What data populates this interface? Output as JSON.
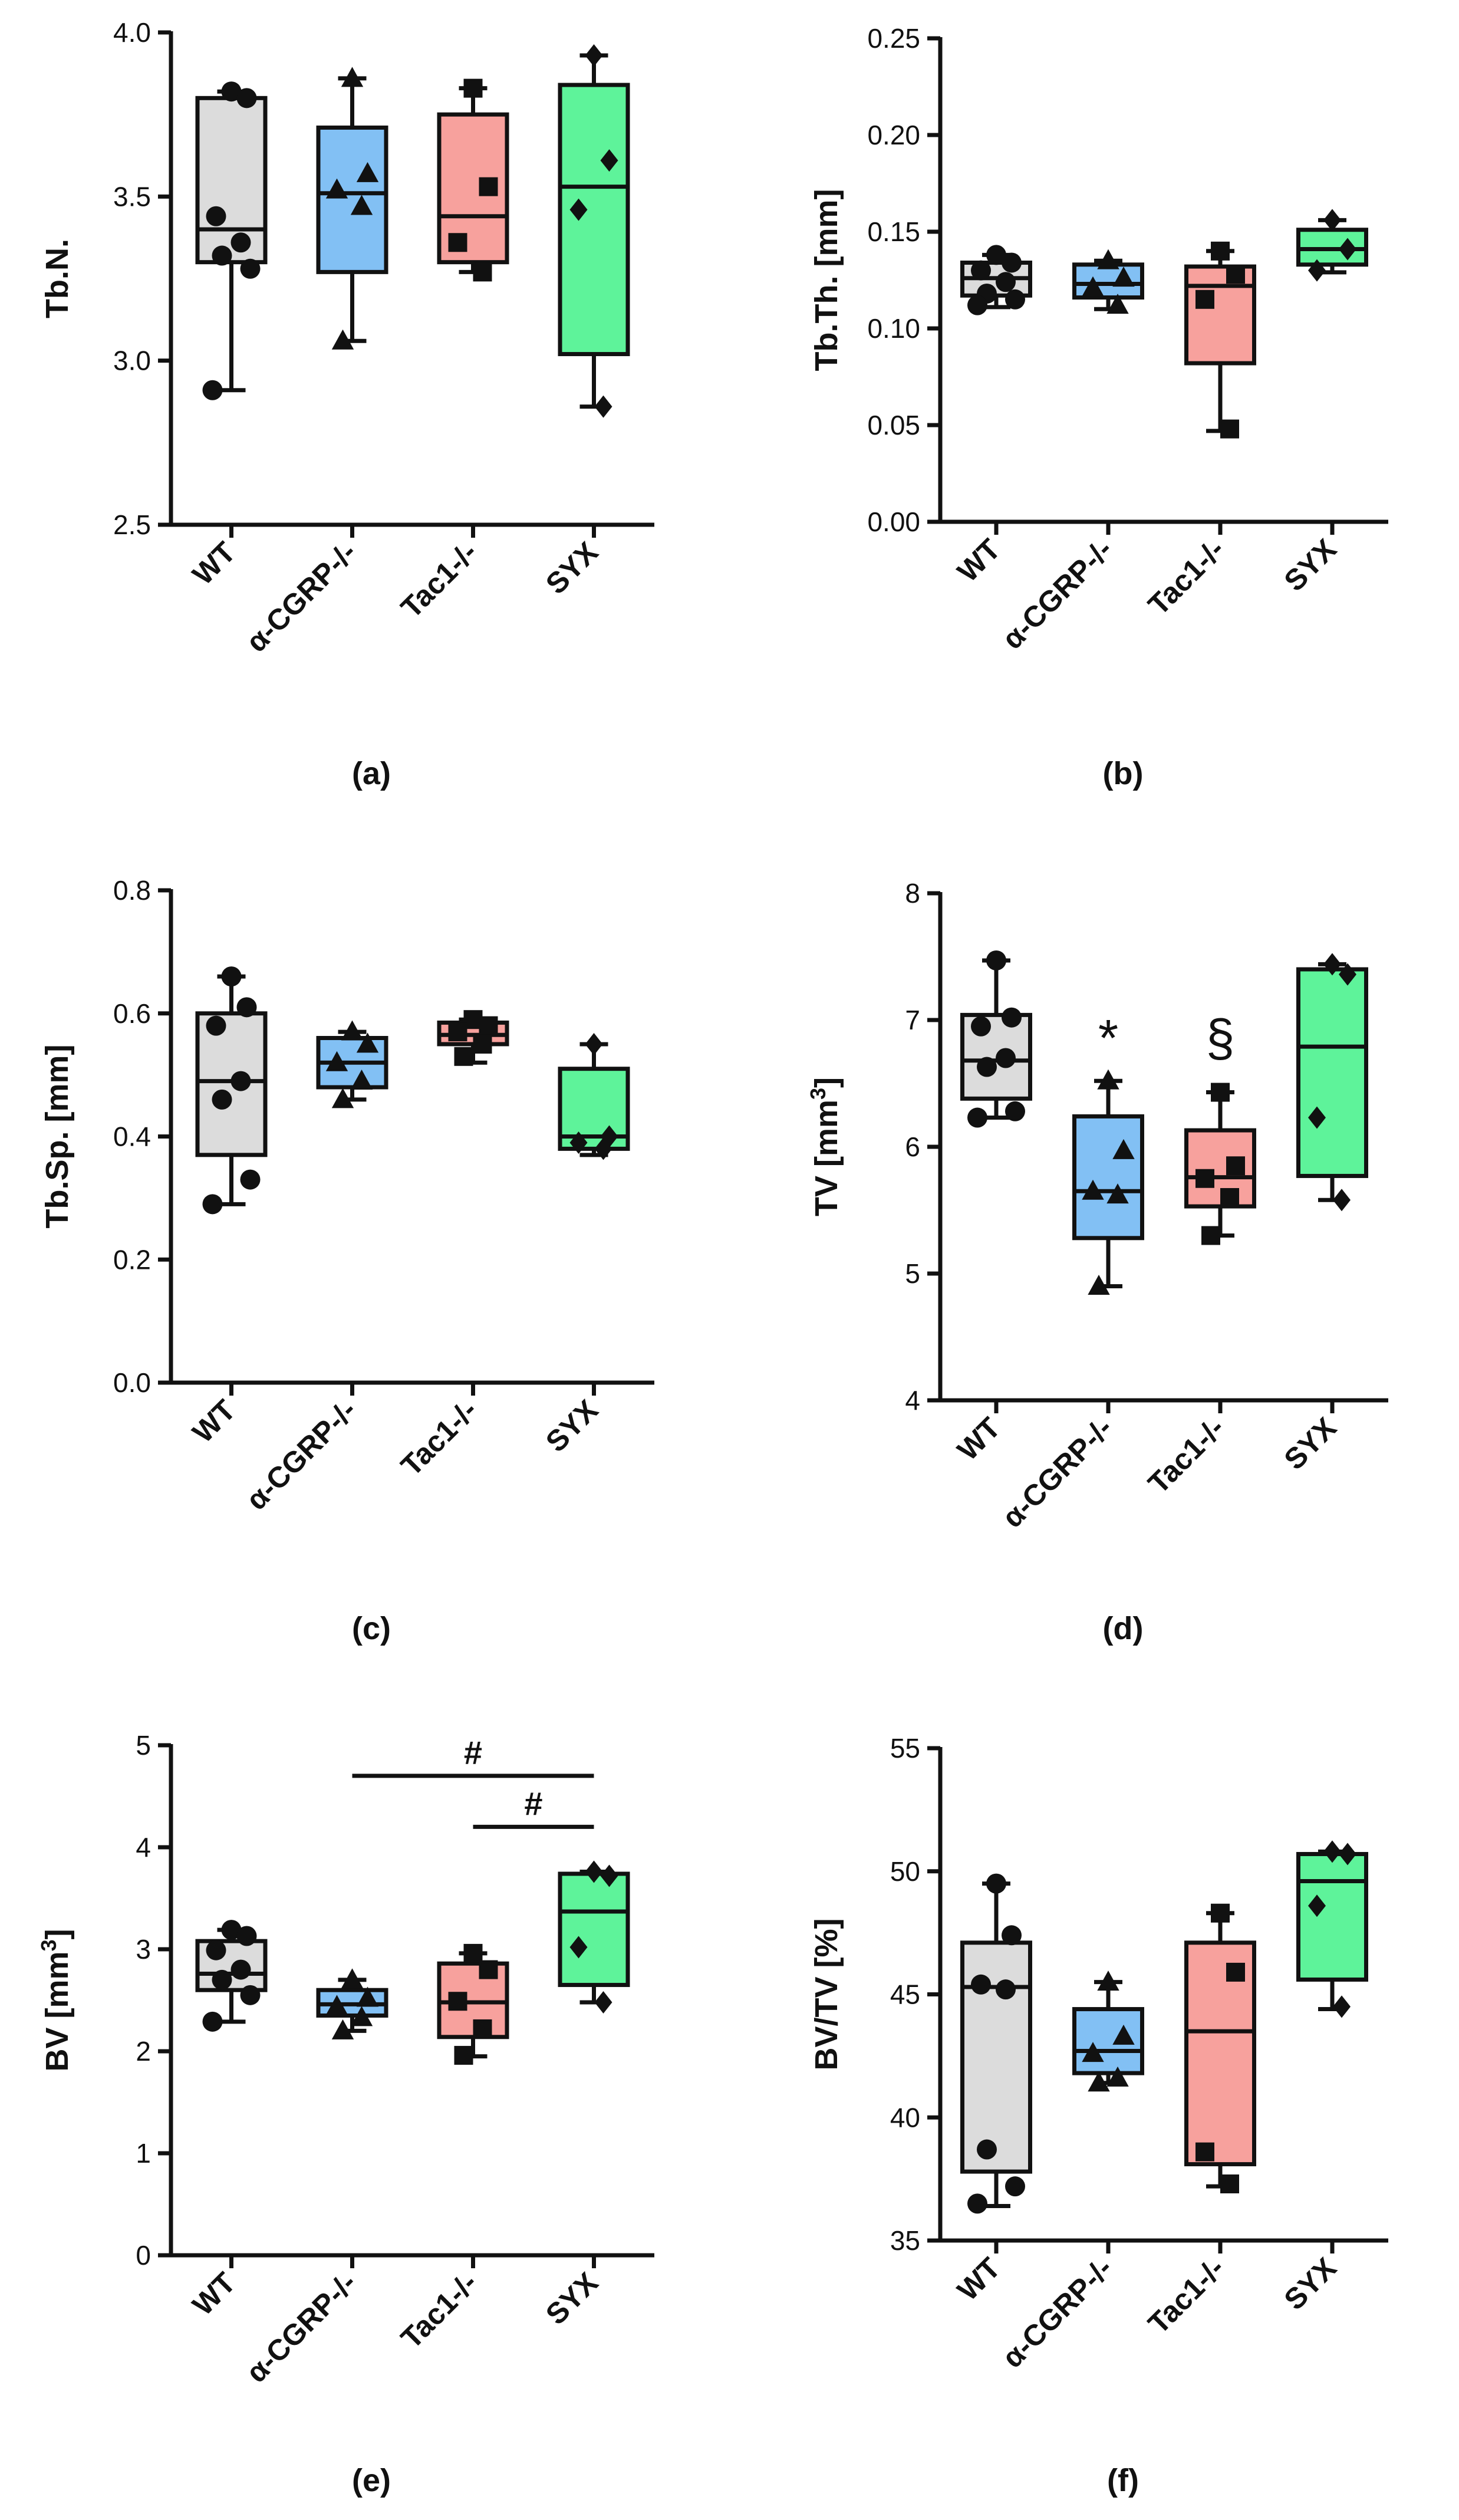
{
  "colors": {
    "WT": "#dcdcdc",
    "a-CGRP": "#82c0f4",
    "Tac1": "#f7a19d",
    "SYX": "#5ef39a",
    "ink": "#111111"
  },
  "chart_data": [
    {
      "type": "box",
      "panel_label": "(a)",
      "ylabel": "Tb.N.",
      "ylabel_sup": "",
      "ylabel_tail": "",
      "ylim": [
        2.5,
        4.0
      ],
      "yticks": [
        "2.5",
        "3.0",
        "3.5",
        "4.0"
      ],
      "ytick_values": [
        2.5,
        3.0,
        3.5,
        4.0
      ],
      "categories": [
        "WT",
        "α-CGRP-/-",
        "Tac1-/-",
        "SYX"
      ],
      "series": [
        {
          "name": "WT",
          "marker": "circle",
          "min": 2.91,
          "q1": 3.3,
          "median": 3.4,
          "q3": 3.8,
          "max": 3.82,
          "points": [
            3.82,
            3.8,
            3.44,
            3.36,
            3.32,
            3.28,
            2.91
          ]
        },
        {
          "name": "α-CGRP-/-",
          "marker": "triangle",
          "min": 3.06,
          "q1": 3.27,
          "median": 3.51,
          "q3": 3.71,
          "max": 3.86,
          "points": [
            3.86,
            3.57,
            3.52,
            3.47,
            3.06
          ]
        },
        {
          "name": "Tac1-/-",
          "marker": "square",
          "min": 3.27,
          "q1": 3.3,
          "median": 3.44,
          "q3": 3.75,
          "max": 3.83,
          "points": [
            3.83,
            3.53,
            3.36,
            3.27
          ]
        },
        {
          "name": "SYX",
          "marker": "diamond",
          "min": 2.86,
          "q1": 3.02,
          "median": 3.53,
          "q3": 3.84,
          "max": 3.93,
          "points": [
            3.93,
            3.61,
            3.46,
            2.86
          ]
        }
      ],
      "annotations": [],
      "brackets": []
    },
    {
      "type": "box",
      "panel_label": "(b)",
      "ylabel": "Tb.Th. [mm]",
      "ylabel_sup": "",
      "ylabel_tail": "",
      "ylim": [
        0.0,
        0.25
      ],
      "yticks": [
        "0.00",
        "0.05",
        "0.10",
        "0.15",
        "0.20",
        "0.25"
      ],
      "ytick_values": [
        0.0,
        0.05,
        0.1,
        0.15,
        0.2,
        0.25
      ],
      "categories": [
        "WT",
        "α-CGRP-/-",
        "Tac1-/-",
        "SYX"
      ],
      "series": [
        {
          "name": "WT",
          "marker": "circle",
          "min": 0.111,
          "q1": 0.117,
          "median": 0.126,
          "q3": 0.134,
          "max": 0.138,
          "points": [
            0.138,
            0.134,
            0.13,
            0.124,
            0.118,
            0.115,
            0.112
          ]
        },
        {
          "name": "α-CGRP-/-",
          "marker": "triangle",
          "min": 0.11,
          "q1": 0.116,
          "median": 0.123,
          "q3": 0.133,
          "max": 0.135,
          "points": [
            0.135,
            0.126,
            0.121,
            0.112
          ]
        },
        {
          "name": "Tac1-/-",
          "marker": "square",
          "min": 0.047,
          "q1": 0.082,
          "median": 0.122,
          "q3": 0.132,
          "max": 0.14,
          "points": [
            0.14,
            0.128,
            0.115,
            0.048
          ]
        },
        {
          "name": "SYX",
          "marker": "diamond",
          "min": 0.129,
          "q1": 0.133,
          "median": 0.141,
          "q3": 0.151,
          "max": 0.156,
          "points": [
            0.156,
            0.141,
            0.13
          ]
        }
      ],
      "annotations": [],
      "brackets": []
    },
    {
      "type": "box",
      "panel_label": "(c)",
      "ylabel": "Tb.Sp. [mm]",
      "ylabel_sup": "",
      "ylabel_tail": "",
      "ylim": [
        0.0,
        0.8
      ],
      "yticks": [
        "0.0",
        "0.2",
        "0.4",
        "0.6",
        "0.8"
      ],
      "ytick_values": [
        0.0,
        0.2,
        0.4,
        0.6,
        0.8
      ],
      "categories": [
        "WT",
        "α-CGRP-/-",
        "Tac1-/-",
        "SYX"
      ],
      "series": [
        {
          "name": "WT",
          "marker": "circle",
          "min": 0.29,
          "q1": 0.37,
          "median": 0.49,
          "q3": 0.6,
          "max": 0.66,
          "points": [
            0.66,
            0.61,
            0.58,
            0.49,
            0.46,
            0.33,
            0.29
          ]
        },
        {
          "name": "α-CGRP-/-",
          "marker": "triangle",
          "min": 0.46,
          "q1": 0.48,
          "median": 0.52,
          "q3": 0.56,
          "max": 0.57,
          "points": [
            0.57,
            0.55,
            0.52,
            0.49,
            0.46
          ]
        },
        {
          "name": "Tac1-/-",
          "marker": "square",
          "min": 0.52,
          "q1": 0.55,
          "median": 0.565,
          "q3": 0.585,
          "max": 0.59,
          "points": [
            0.59,
            0.58,
            0.57,
            0.55,
            0.53
          ]
        },
        {
          "name": "SYX",
          "marker": "diamond",
          "min": 0.37,
          "q1": 0.38,
          "median": 0.4,
          "q3": 0.51,
          "max": 0.55,
          "points": [
            0.55,
            0.4,
            0.39,
            0.38
          ]
        }
      ],
      "annotations": [],
      "brackets": []
    },
    {
      "type": "box",
      "panel_label": "(d)",
      "ylabel": "TV [mm",
      "ylabel_sup": "3",
      "ylabel_tail": "]",
      "ylim": [
        4,
        8
      ],
      "yticks": [
        "4",
        "5",
        "6",
        "7",
        "8"
      ],
      "ytick_values": [
        4,
        5,
        6,
        7,
        8
      ],
      "categories": [
        "WT",
        "α-CGRP-/-",
        "Tac1-/-",
        "SYX"
      ],
      "series": [
        {
          "name": "WT",
          "marker": "circle",
          "min": 6.23,
          "q1": 6.38,
          "median": 6.68,
          "q3": 7.04,
          "max": 7.47,
          "points": [
            7.47,
            7.02,
            6.95,
            6.7,
            6.63,
            6.28,
            6.23
          ]
        },
        {
          "name": "α-CGRP-/-",
          "marker": "triangle",
          "min": 4.9,
          "q1": 5.28,
          "median": 5.65,
          "q3": 6.24,
          "max": 6.52,
          "points": [
            6.52,
            5.97,
            5.65,
            5.62,
            4.9
          ]
        },
        {
          "name": "Tac1-/-",
          "marker": "square",
          "min": 5.3,
          "q1": 5.53,
          "median": 5.76,
          "q3": 6.13,
          "max": 6.43,
          "points": [
            6.43,
            5.85,
            5.75,
            5.6,
            5.3
          ]
        },
        {
          "name": "SYX",
          "marker": "diamond",
          "min": 5.58,
          "q1": 5.77,
          "median": 6.79,
          "q3": 7.4,
          "max": 7.44,
          "points": [
            7.44,
            7.36,
            6.23,
            5.58
          ]
        }
      ],
      "annotations": [
        {
          "category_index": 1,
          "text": "*",
          "value": 6.85
        },
        {
          "category_index": 2,
          "text": "§",
          "value": 6.85
        }
      ],
      "brackets": []
    },
    {
      "type": "box",
      "panel_label": "(e)",
      "ylabel": "BV [mm",
      "ylabel_sup": "3",
      "ylabel_tail": "]",
      "ylim": [
        0,
        5
      ],
      "yticks": [
        "0",
        "1",
        "2",
        "3",
        "4",
        "5"
      ],
      "ytick_values": [
        0,
        1,
        2,
        3,
        4,
        5
      ],
      "categories": [
        "WT",
        "α-CGRP-/-",
        "Tac1-/-",
        "SYX"
      ],
      "series": [
        {
          "name": "WT",
          "marker": "circle",
          "min": 2.29,
          "q1": 2.6,
          "median": 2.76,
          "q3": 3.08,
          "max": 3.19,
          "points": [
            3.19,
            3.13,
            2.99,
            2.8,
            2.7,
            2.55,
            2.29
          ]
        },
        {
          "name": "α-CGRP-/-",
          "marker": "triangle",
          "min": 2.2,
          "q1": 2.35,
          "median": 2.46,
          "q3": 2.6,
          "max": 2.7,
          "points": [
            2.7,
            2.52,
            2.44,
            2.33,
            2.2
          ]
        },
        {
          "name": "Tac1-/-",
          "marker": "square",
          "min": 1.95,
          "q1": 2.14,
          "median": 2.48,
          "q3": 2.86,
          "max": 2.96,
          "points": [
            2.96,
            2.8,
            2.49,
            2.22,
            1.96
          ]
        },
        {
          "name": "SYX",
          "marker": "diamond",
          "min": 2.48,
          "q1": 2.65,
          "median": 3.37,
          "q3": 3.74,
          "max": 3.76,
          "points": [
            3.76,
            3.72,
            3.02,
            2.48
          ]
        }
      ],
      "annotations": [],
      "brackets": [
        {
          "from": 1,
          "to": 3,
          "value": 4.7,
          "text": "#"
        },
        {
          "from": 2,
          "to": 3,
          "value": 4.2,
          "text": "#"
        }
      ]
    },
    {
      "type": "box",
      "panel_label": "(f)",
      "ylabel": "BV/TV [%]",
      "ylabel_sup": "",
      "ylabel_tail": "",
      "ylim": [
        35,
        55
      ],
      "yticks": [
        "35",
        "40",
        "45",
        "50",
        "55"
      ],
      "ytick_values": [
        35,
        40,
        45,
        50,
        55
      ],
      "categories": [
        "WT",
        "α-CGRP-/-",
        "Tac1-/-",
        "SYX"
      ],
      "series": [
        {
          "name": "WT",
          "marker": "circle",
          "min": 36.4,
          "q1": 37.8,
          "median": 45.3,
          "q3": 47.1,
          "max": 49.5,
          "points": [
            49.5,
            47.4,
            45.4,
            45.2,
            38.7,
            37.2,
            36.5
          ]
        },
        {
          "name": "α-CGRP-/-",
          "marker": "triangle",
          "min": 41.4,
          "q1": 41.8,
          "median": 42.7,
          "q3": 44.4,
          "max": 45.5,
          "points": [
            45.5,
            43.3,
            42.6,
            41.6,
            41.4
          ]
        },
        {
          "name": "Tac1-/-",
          "marker": "square",
          "min": 37.2,
          "q1": 38.1,
          "median": 43.5,
          "q3": 47.1,
          "max": 48.3,
          "points": [
            48.3,
            45.9,
            38.6,
            37.3
          ]
        },
        {
          "name": "SYX",
          "marker": "diamond",
          "min": 44.4,
          "q1": 45.6,
          "median": 49.6,
          "q3": 50.7,
          "max": 50.8,
          "points": [
            50.8,
            50.7,
            48.6,
            44.5
          ]
        }
      ],
      "annotations": [],
      "brackets": []
    }
  ]
}
